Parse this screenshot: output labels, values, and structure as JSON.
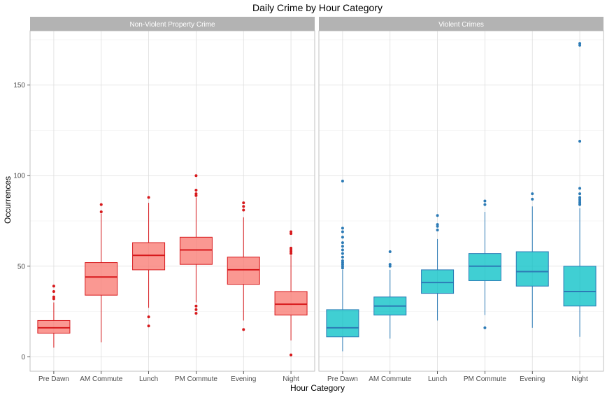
{
  "chart_data": {
    "type": "boxplot",
    "title": "Daily Crime by Hour Category",
    "xlabel": "Hour Category",
    "ylabel": "Occurrences",
    "ylim": [
      -8,
      180
    ],
    "yticks": [
      0,
      50,
      100,
      150
    ],
    "grid": true,
    "categories": [
      "Pre Dawn",
      "AM Commute",
      "Lunch",
      "PM Commute",
      "Evening",
      "Night"
    ],
    "panels": [
      {
        "name": "Non-Violent Property Crime",
        "fill": "#F8766D",
        "line": "#D7191C",
        "boxes": [
          {
            "min": 5,
            "q1": 13,
            "median": 16,
            "q3": 20,
            "max": 30,
            "outliers": [
              32,
              33,
              36,
              39
            ]
          },
          {
            "min": 8,
            "q1": 34,
            "median": 44,
            "q3": 52,
            "max": 79,
            "outliers": [
              80,
              84
            ]
          },
          {
            "min": 27,
            "q1": 48,
            "median": 56,
            "q3": 63,
            "max": 85,
            "outliers": [
              17,
              22,
              88
            ]
          },
          {
            "min": 30,
            "q1": 51,
            "median": 59,
            "q3": 66,
            "max": 88,
            "outliers": [
              24,
              26,
              28,
              89,
              90,
              92,
              100
            ]
          },
          {
            "min": 20,
            "q1": 40,
            "median": 48,
            "q3": 55,
            "max": 77,
            "outliers": [
              15,
              81,
              83,
              85
            ]
          },
          {
            "min": 9,
            "q1": 23,
            "median": 29,
            "q3": 36,
            "max": 56,
            "outliers": [
              1,
              57,
              58,
              59,
              60,
              68,
              69
            ]
          }
        ]
      },
      {
        "name": "Violent Crimes",
        "fill": "#00BFC4",
        "line": "#2C7BB6",
        "boxes": [
          {
            "min": 3,
            "q1": 11,
            "median": 16,
            "q3": 26,
            "max": 48,
            "outliers": [
              49,
              50,
              51,
              52,
              53,
              55,
              57,
              59,
              61,
              63,
              66,
              69,
              71,
              97
            ]
          },
          {
            "min": 10,
            "q1": 23,
            "median": 28,
            "q3": 33,
            "max": 48,
            "outliers": [
              50,
              51,
              58
            ]
          },
          {
            "min": 20,
            "q1": 35,
            "median": 41,
            "q3": 48,
            "max": 65,
            "outliers": [
              70,
              72,
              73,
              78
            ]
          },
          {
            "min": 23,
            "q1": 42,
            "median": 50,
            "q3": 57,
            "max": 80,
            "outliers": [
              16,
              84,
              86
            ]
          },
          {
            "min": 16,
            "q1": 39,
            "median": 47,
            "q3": 58,
            "max": 83,
            "outliers": [
              87,
              90
            ]
          },
          {
            "min": 11,
            "q1": 28,
            "median": 36,
            "q3": 50,
            "max": 82,
            "outliers": [
              84,
              85,
              86,
              87,
              88,
              90,
              93,
              119,
              172,
              173
            ]
          }
        ]
      }
    ]
  }
}
